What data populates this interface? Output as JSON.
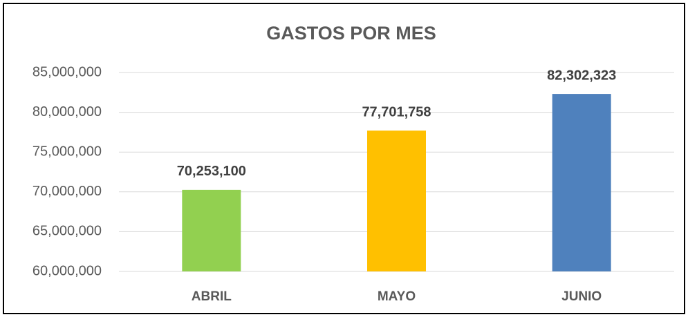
{
  "chart_data": {
    "type": "bar",
    "title": "GASTOS POR MES",
    "categories": [
      "ABRIL",
      "MAYO",
      "JUNIO"
    ],
    "values": [
      70253100,
      77701758,
      82302323
    ],
    "value_labels": [
      "70,253,100",
      "77,701,758",
      "82,302,323"
    ],
    "colors": [
      "#92d050",
      "#ffc000",
      "#4f81bd"
    ],
    "ylim": [
      60000000,
      85000000
    ],
    "yticks": [
      {
        "value": 60000000,
        "label": "60,000,000"
      },
      {
        "value": 65000000,
        "label": "65,000,000"
      },
      {
        "value": 70000000,
        "label": "70,000,000"
      },
      {
        "value": 75000000,
        "label": "75,000,000"
      },
      {
        "value": 80000000,
        "label": "80,000,000"
      },
      {
        "value": 85000000,
        "label": "85,000,000"
      }
    ],
    "grid": true
  }
}
